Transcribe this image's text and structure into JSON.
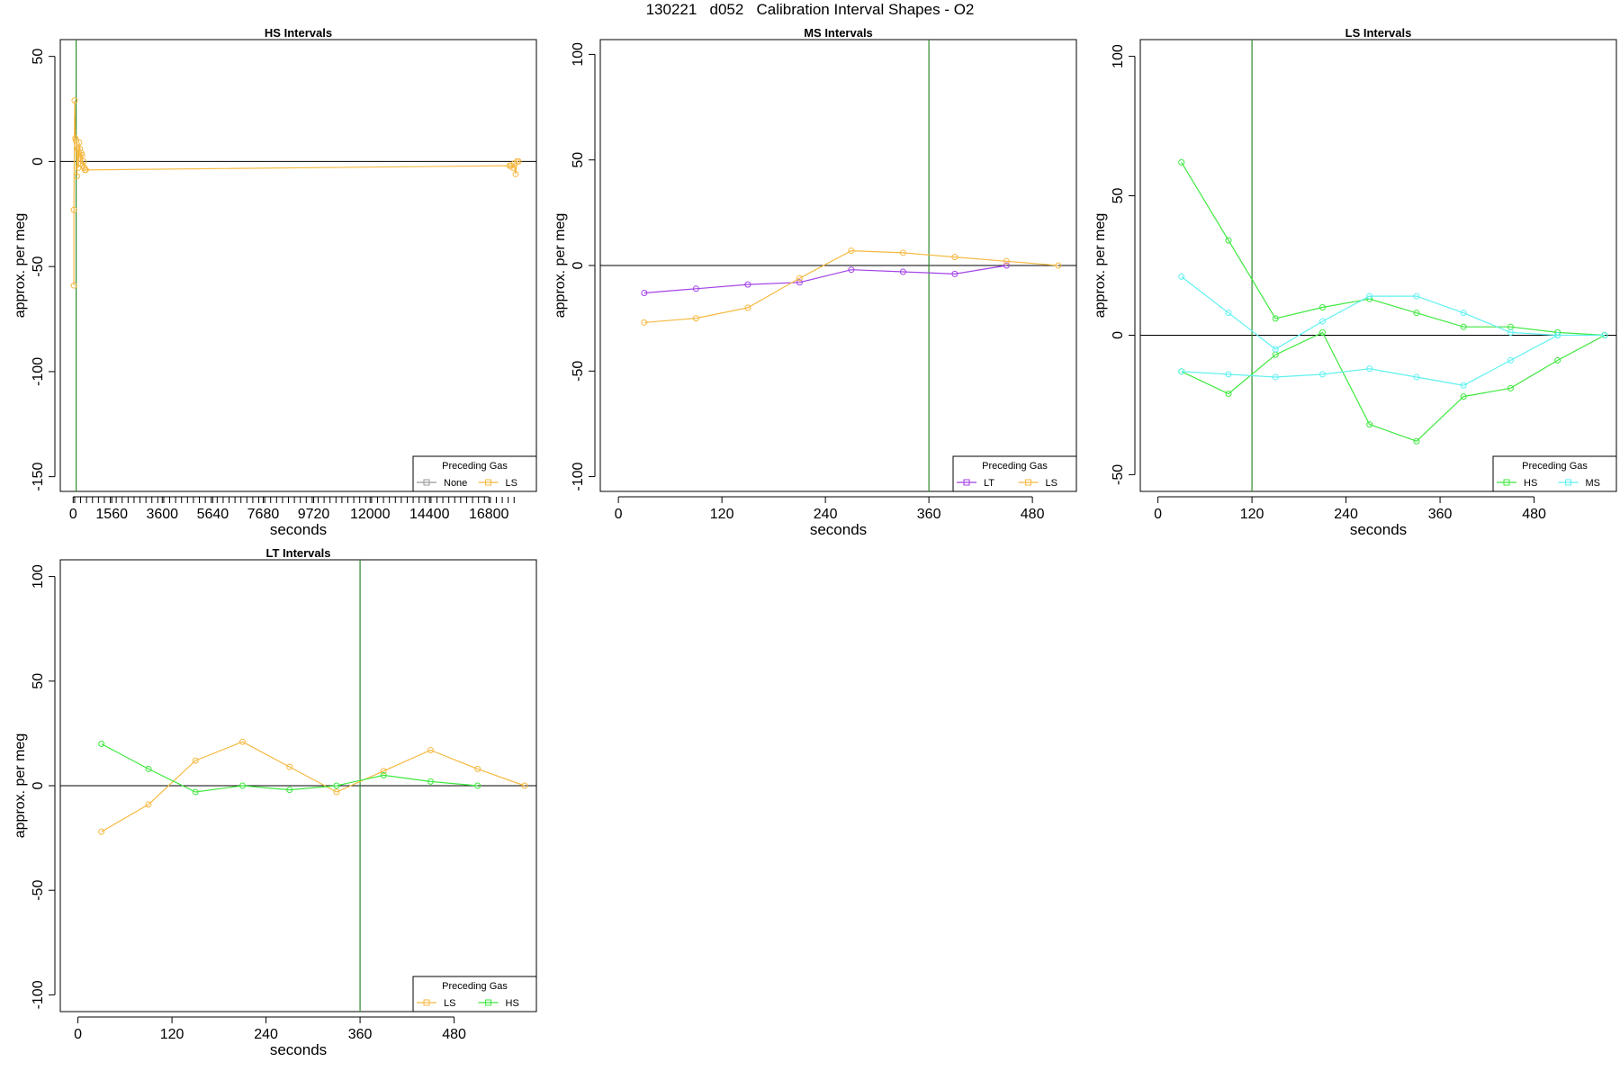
{
  "figure_title": "130221   d052   Calibration Interval Shapes - O2",
  "colors": {
    "None": "#999999",
    "LS": "#f5b942",
    "MS": "#5ff0f0",
    "HS": "#3ee83e",
    "LT": "#a342e8",
    "vline": "#2e8b2e"
  },
  "chart_data": [
    {
      "type": "line",
      "title": "HS Intervals",
      "xlabel": "seconds",
      "ylabel": "approx. per meg",
      "xlim": [
        -520,
        18720
      ],
      "ylim": [
        -157,
        58
      ],
      "xticks": [
        0,
        1560,
        3600,
        5640,
        7680,
        9720,
        12000,
        14400,
        16800
      ],
      "minor_ticks": {
        "start": 60,
        "end": 18000,
        "step": 240
      },
      "yticks": [
        50,
        0,
        -50,
        -100,
        -150
      ],
      "hline": 0,
      "vline": 120,
      "legend": {
        "title": "Preceding Gas",
        "entries": [
          "None",
          "LS"
        ],
        "position": "bottom-right"
      },
      "series": [
        {
          "name": "LS",
          "x": [
            30,
            30,
            60,
            90,
            120,
            150,
            180,
            210,
            240,
            270,
            300,
            330,
            360,
            390,
            420,
            450,
            480,
            510,
            17640,
            17700,
            17760,
            17820,
            17880,
            17940,
            18000
          ],
          "y": [
            -59,
            -23,
            29,
            11,
            10,
            -7,
            6,
            -3,
            9,
            6,
            -1,
            4,
            3,
            -2,
            0,
            -3,
            -4,
            -4,
            -2,
            -2,
            -3,
            -1,
            -6,
            0,
            0
          ]
        }
      ]
    },
    {
      "type": "line",
      "title": "MS Intervals",
      "xlabel": "seconds",
      "ylabel": "approx. per meg",
      "xlim": [
        -21,
        531
      ],
      "ylim": [
        -107,
        107
      ],
      "xticks": [
        0,
        120,
        240,
        360,
        480
      ],
      "yticks": [
        100,
        50,
        0,
        -50,
        -100
      ],
      "hline": 0,
      "vline": 360,
      "legend": {
        "title": "Preceding Gas",
        "entries": [
          "LT",
          "LS"
        ],
        "position": "bottom-right"
      },
      "series": [
        {
          "name": "LT",
          "x": [
            30,
            90,
            150,
            210,
            270,
            330,
            390,
            450
          ],
          "y": [
            -13,
            -11,
            -9,
            -8,
            -2,
            -3,
            -4,
            0
          ]
        },
        {
          "name": "LS",
          "x": [
            30,
            90,
            150,
            210,
            270,
            330,
            390,
            450,
            510
          ],
          "y": [
            -27,
            -25,
            -20,
            -6,
            7,
            6,
            4,
            2,
            0
          ]
        }
      ]
    },
    {
      "type": "line",
      "title": "LS Intervals",
      "xlabel": "seconds",
      "ylabel": "approx. per meg",
      "xlim": [
        -22.5,
        585
      ],
      "ylim": [
        -56,
        106
      ],
      "xticks": [
        0,
        120,
        240,
        360,
        480
      ],
      "yticks": [
        100,
        50,
        0,
        -50
      ],
      "hline": 0,
      "vline": 120,
      "legend": {
        "title": "Preceding Gas",
        "entries": [
          "HS",
          "MS"
        ],
        "position": "bottom-right"
      },
      "series": [
        {
          "name": "HS",
          "x": [
            30,
            90,
            150,
            210,
            270,
            330,
            390,
            450,
            510,
            570
          ],
          "y": [
            62,
            34,
            6,
            10,
            13,
            8,
            3,
            3,
            1,
            0
          ]
        },
        {
          "name": "HS",
          "x": [
            30,
            90,
            150,
            210,
            270,
            330,
            390,
            450,
            510,
            570
          ],
          "y": [
            -13,
            -21,
            -7,
            1,
            -32,
            -38,
            -22,
            -19,
            -9,
            0
          ]
        },
        {
          "name": "MS",
          "x": [
            30,
            90,
            150,
            210,
            270,
            330,
            390,
            450,
            510,
            570
          ],
          "y": [
            21,
            8,
            -5,
            5,
            14,
            14,
            8,
            1,
            0,
            0
          ]
        },
        {
          "name": "MS",
          "x": [
            30,
            90,
            150,
            210,
            270,
            330,
            390,
            450,
            510
          ],
          "y": [
            -13,
            -14,
            -15,
            -14,
            -12,
            -15,
            -18,
            -9,
            0
          ]
        }
      ]
    },
    {
      "type": "line",
      "title": "LT Intervals",
      "xlabel": "seconds",
      "ylabel": "approx. per meg",
      "xlim": [
        -22.5,
        585
      ],
      "ylim": [
        -108,
        108
      ],
      "xticks": [
        0,
        120,
        240,
        360,
        480
      ],
      "yticks": [
        100,
        50,
        0,
        -50,
        -100
      ],
      "hline": 0,
      "vline": 360,
      "legend": {
        "title": "Preceding Gas",
        "entries": [
          "LS",
          "HS"
        ],
        "position": "bottom-right"
      },
      "series": [
        {
          "name": "LS",
          "x": [
            30,
            90,
            150,
            210,
            270,
            330,
            390,
            450,
            510,
            570
          ],
          "y": [
            -22,
            -9,
            12,
            21,
            9,
            -3,
            7,
            17,
            8,
            0
          ]
        },
        {
          "name": "HS",
          "x": [
            30,
            90,
            150,
            210,
            270,
            330,
            390,
            450,
            510
          ],
          "y": [
            20,
            8,
            -3,
            0,
            -2,
            0,
            5,
            2,
            0
          ]
        }
      ]
    }
  ]
}
